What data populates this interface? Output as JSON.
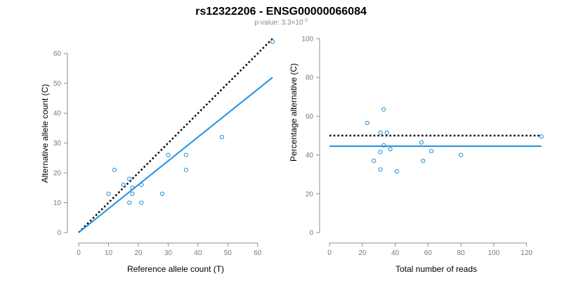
{
  "figure": {
    "title": "rs12322206 - ENSG00000066084",
    "pvalue_text": "p-value: 3.3×10",
    "pvalue_exponent": "-3"
  },
  "colors": {
    "points": "#1f8fdb",
    "fit_line": "#1f8fe0",
    "reference_line": "#000000",
    "axis": "#8c8c8c"
  },
  "chart_data": [
    {
      "type": "scatter",
      "xlabel": "Reference allele count (T)",
      "ylabel": "Alternative allele count (C)",
      "xlim": [
        0,
        65
      ],
      "ylim": [
        0,
        65
      ],
      "xticks": [
        0,
        10,
        20,
        30,
        40,
        50,
        60
      ],
      "yticks": [
        0,
        10,
        20,
        30,
        40,
        50,
        60
      ],
      "points": [
        {
          "x": 10,
          "y": 13
        },
        {
          "x": 12,
          "y": 21
        },
        {
          "x": 15,
          "y": 16
        },
        {
          "x": 17,
          "y": 10
        },
        {
          "x": 17,
          "y": 18
        },
        {
          "x": 18,
          "y": 15
        },
        {
          "x": 18,
          "y": 13
        },
        {
          "x": 21,
          "y": 16
        },
        {
          "x": 21,
          "y": 10
        },
        {
          "x": 28,
          "y": 13
        },
        {
          "x": 30,
          "y": 26
        },
        {
          "x": 36,
          "y": 26
        },
        {
          "x": 36,
          "y": 21
        },
        {
          "x": 48,
          "y": 32
        },
        {
          "x": 65,
          "y": 64
        }
      ],
      "fit_line": {
        "x": [
          0,
          65
        ],
        "y": [
          0,
          52
        ]
      },
      "reference_line": {
        "x": [
          0,
          65
        ],
        "y": [
          0,
          65
        ]
      }
    },
    {
      "type": "scatter",
      "xlabel": "Total number of reads",
      "ylabel": "Percentage alternative (C)",
      "xlim": [
        0,
        130
      ],
      "ylim": [
        0,
        100
      ],
      "xticks": [
        0,
        20,
        40,
        60,
        80,
        100,
        120
      ],
      "yticks": [
        0,
        20,
        40,
        60,
        80,
        100
      ],
      "points": [
        {
          "x": 23,
          "y": 56.5
        },
        {
          "x": 27,
          "y": 37
        },
        {
          "x": 31,
          "y": 51.5
        },
        {
          "x": 31,
          "y": 41.5
        },
        {
          "x": 31,
          "y": 32.5
        },
        {
          "x": 33,
          "y": 63.5
        },
        {
          "x": 33,
          "y": 45
        },
        {
          "x": 35,
          "y": 51.5
        },
        {
          "x": 37,
          "y": 43
        },
        {
          "x": 41,
          "y": 31.5
        },
        {
          "x": 56,
          "y": 46.5
        },
        {
          "x": 57,
          "y": 37
        },
        {
          "x": 62,
          "y": 42
        },
        {
          "x": 80,
          "y": 40
        },
        {
          "x": 129,
          "y": 49.5
        }
      ],
      "fit_line": {
        "x": [
          0,
          129
        ],
        "y": [
          44.5,
          44.5
        ]
      },
      "reference_line": {
        "x": [
          0,
          129
        ],
        "y": [
          50,
          50
        ]
      }
    }
  ]
}
